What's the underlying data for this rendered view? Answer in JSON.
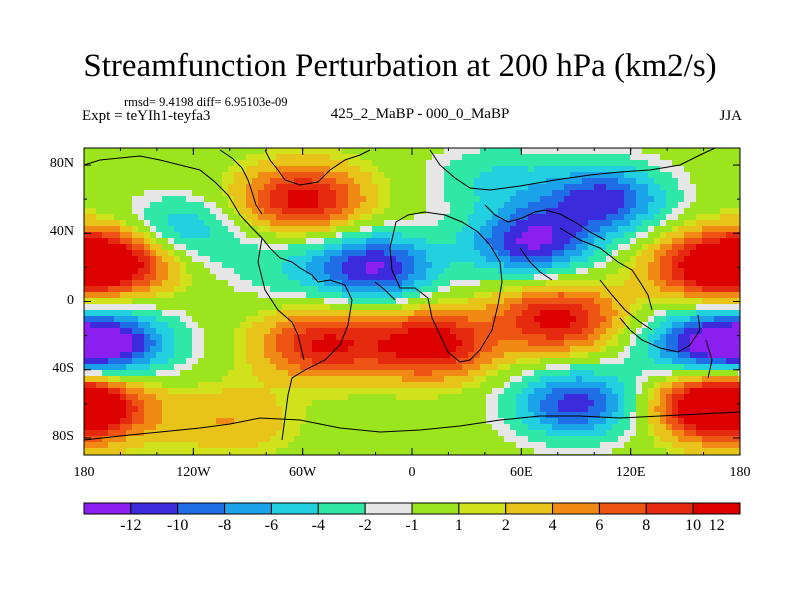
{
  "title": "Streamfunction Perturbation at 200 hPa (km2/s)",
  "stats": "rmsd= 9.4198 diff= 6.95103e-09",
  "expt": "Expt = teYIh1-teyfa3",
  "center_label": "425_2_MaBP - 000_0_MaBP",
  "season": "JJA",
  "chart_data": {
    "type": "heatmap",
    "title": "Streamfunction Perturbation at 200 hPa (km2/s)",
    "xlabel": "",
    "ylabel": "",
    "xlim": [
      -180,
      180
    ],
    "ylim": [
      -90,
      90
    ],
    "x_ticks": [
      "180",
      "120W",
      "60W",
      "0",
      "60E",
      "120E",
      "180"
    ],
    "y_ticks": [
      "80N",
      "40N",
      "0",
      "40S",
      "80S"
    ],
    "colorbar": {
      "levels": [
        "-12",
        "-10",
        "-8",
        "-6",
        "-4",
        "-2",
        "-1",
        "1",
        "2",
        "4",
        "6",
        "8",
        "10",
        "12"
      ],
      "colors": [
        "#8a1ff0",
        "#3b2bdc",
        "#1f6ee6",
        "#1aa3e8",
        "#22d0e0",
        "#2fe8a8",
        "#e6e6e6",
        "#9be41e",
        "#cfe21c",
        "#e8c41a",
        "#f08a14",
        "#ee5414",
        "#e62a10",
        "#dc0000"
      ]
    },
    "features": [
      {
        "lon": -160,
        "lat": 25,
        "value": 12
      },
      {
        "lon": 165,
        "lat": 20,
        "value": 12
      },
      {
        "lon": -60,
        "lat": 60,
        "value": 11
      },
      {
        "lon": -165,
        "lat": -25,
        "value": -12
      },
      {
        "lon": 160,
        "lat": -25,
        "value": -11
      },
      {
        "lon": -20,
        "lat": 20,
        "value": -12
      },
      {
        "lon": 65,
        "lat": 35,
        "value": -12
      },
      {
        "lon": 105,
        "lat": 60,
        "value": -11
      },
      {
        "lon": 90,
        "lat": -60,
        "value": -11
      },
      {
        "lon": -130,
        "lat": 40,
        "value": -7
      },
      {
        "lon": 10,
        "lat": -25,
        "value": 12
      },
      {
        "lon": 80,
        "lat": -10,
        "value": 11
      },
      {
        "lon": -50,
        "lat": -25,
        "value": 10
      },
      {
        "lon": 165,
        "lat": -60,
        "value": 12
      },
      {
        "lon": -175,
        "lat": -62,
        "value": 9
      },
      {
        "lon": 45,
        "lat": 72,
        "value": -4
      },
      {
        "lon": -70,
        "lat": 20,
        "value": -3
      },
      {
        "lon": -100,
        "lat": -70,
        "value": 4
      }
    ]
  }
}
